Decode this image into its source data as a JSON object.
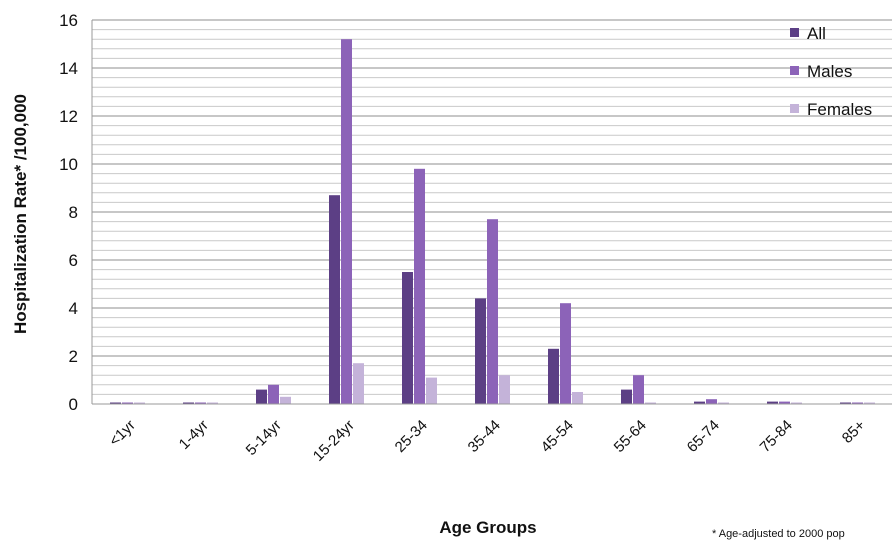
{
  "chart_data": {
    "type": "bar",
    "categories": [
      "<1yr",
      "1-4yr",
      "5-14yr",
      "15-24yr",
      "25-34",
      "35-44",
      "45-54",
      "55-64",
      "65-74",
      "75-84",
      "85+"
    ],
    "series": [
      {
        "name": "All",
        "color": "#5c3f85",
        "values": [
          0,
          0,
          0.6,
          8.7,
          5.5,
          4.4,
          2.3,
          0.6,
          0.1,
          0.1,
          0
        ]
      },
      {
        "name": "Males",
        "color": "#8c63b8",
        "values": [
          0,
          0,
          0.8,
          15.2,
          9.8,
          7.7,
          4.2,
          1.2,
          0.2,
          0.1,
          0
        ]
      },
      {
        "name": "Females",
        "color": "#c4b3d9",
        "values": [
          0,
          0,
          0.3,
          1.7,
          1.1,
          1.2,
          0.5,
          0,
          0,
          0,
          0
        ]
      }
    ],
    "title": "",
    "xlabel": "Age Groups",
    "ylabel": "Hospitalization Rate* /100,000",
    "ylim": [
      0,
      16
    ],
    "yticks": [
      0,
      2,
      4,
      6,
      8,
      10,
      12,
      14,
      16
    ],
    "grid": true,
    "legend_position": "top-right",
    "footnote": "* Age-adjusted to 2000 pop"
  }
}
